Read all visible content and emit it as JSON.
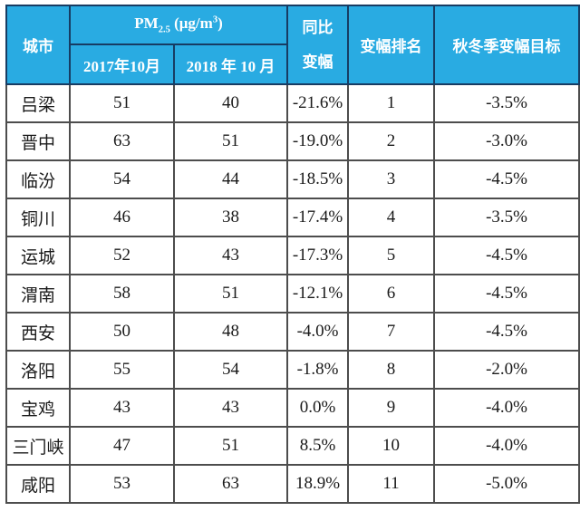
{
  "colors": {
    "header_bg": "#29abe2",
    "header_border": "#173c63",
    "header_text": "#ffffff",
    "body_border": "#4d4d4d",
    "body_text": "#1a1a1a"
  },
  "table": {
    "header": {
      "city": "城市",
      "pm": {
        "prefix": "PM",
        "sub": "2.5",
        "mid": " (μg/m",
        "sup": "3",
        "suffix": ")"
      },
      "col_2017": "2017年10月",
      "col_2018": "2018 年 10 月",
      "yoy_line1": "同比",
      "yoy_line2": "变幅",
      "rank": "变幅排名",
      "target": "秋冬季变幅目标"
    },
    "rows": [
      {
        "city": "吕梁",
        "pm2017": "51",
        "pm2018": "40",
        "yoy": "-21.6%",
        "rank": "1",
        "target": "-3.5%"
      },
      {
        "city": "晋中",
        "pm2017": "63",
        "pm2018": "51",
        "yoy": "-19.0%",
        "rank": "2",
        "target": "-3.0%"
      },
      {
        "city": "临汾",
        "pm2017": "54",
        "pm2018": "44",
        "yoy": "-18.5%",
        "rank": "3",
        "target": "-4.5%"
      },
      {
        "city": "铜川",
        "pm2017": "46",
        "pm2018": "38",
        "yoy": "-17.4%",
        "rank": "4",
        "target": "-3.5%"
      },
      {
        "city": "运城",
        "pm2017": "52",
        "pm2018": "43",
        "yoy": "-17.3%",
        "rank": "5",
        "target": "-4.5%"
      },
      {
        "city": "渭南",
        "pm2017": "58",
        "pm2018": "51",
        "yoy": "-12.1%",
        "rank": "6",
        "target": "-4.5%"
      },
      {
        "city": "西安",
        "pm2017": "50",
        "pm2018": "48",
        "yoy": "-4.0%",
        "rank": "7",
        "target": "-4.5%"
      },
      {
        "city": "洛阳",
        "pm2017": "55",
        "pm2018": "54",
        "yoy": "-1.8%",
        "rank": "8",
        "target": "-2.0%"
      },
      {
        "city": "宝鸡",
        "pm2017": "43",
        "pm2018": "43",
        "yoy": "0.0%",
        "rank": "9",
        "target": "-4.0%"
      },
      {
        "city": "三门峡",
        "pm2017": "47",
        "pm2018": "51",
        "yoy": "8.5%",
        "rank": "10",
        "target": "-4.0%"
      },
      {
        "city": "咸阳",
        "pm2017": "53",
        "pm2018": "63",
        "yoy": "18.9%",
        "rank": "11",
        "target": "-5.0%"
      }
    ]
  },
  "chart_data": {
    "type": "table",
    "title": "PM2.5 (μg/m³) 同比变幅与秋冬季变幅目标",
    "columns": [
      "城市",
      "PM2.5 (μg/m³) 2017年10月",
      "PM2.5 (μg/m³) 2018年10月",
      "同比变幅",
      "变幅排名",
      "秋冬季变幅目标"
    ],
    "rows": [
      [
        "吕梁",
        51,
        40,
        "-21.6%",
        1,
        "-3.5%"
      ],
      [
        "晋中",
        63,
        51,
        "-19.0%",
        2,
        "-3.0%"
      ],
      [
        "临汾",
        54,
        44,
        "-18.5%",
        3,
        "-4.5%"
      ],
      [
        "铜川",
        46,
        38,
        "-17.4%",
        4,
        "-3.5%"
      ],
      [
        "运城",
        52,
        43,
        "-17.3%",
        5,
        "-4.5%"
      ],
      [
        "渭南",
        58,
        51,
        "-12.1%",
        6,
        "-4.5%"
      ],
      [
        "西安",
        50,
        48,
        "-4.0%",
        7,
        "-4.5%"
      ],
      [
        "洛阳",
        55,
        54,
        "-1.8%",
        8,
        "-2.0%"
      ],
      [
        "宝鸡",
        43,
        43,
        "0.0%",
        9,
        "-4.0%"
      ],
      [
        "三门峡",
        47,
        51,
        "8.5%",
        10,
        "-4.0%"
      ],
      [
        "咸阳",
        53,
        63,
        "18.9%",
        11,
        "-5.0%"
      ]
    ]
  }
}
